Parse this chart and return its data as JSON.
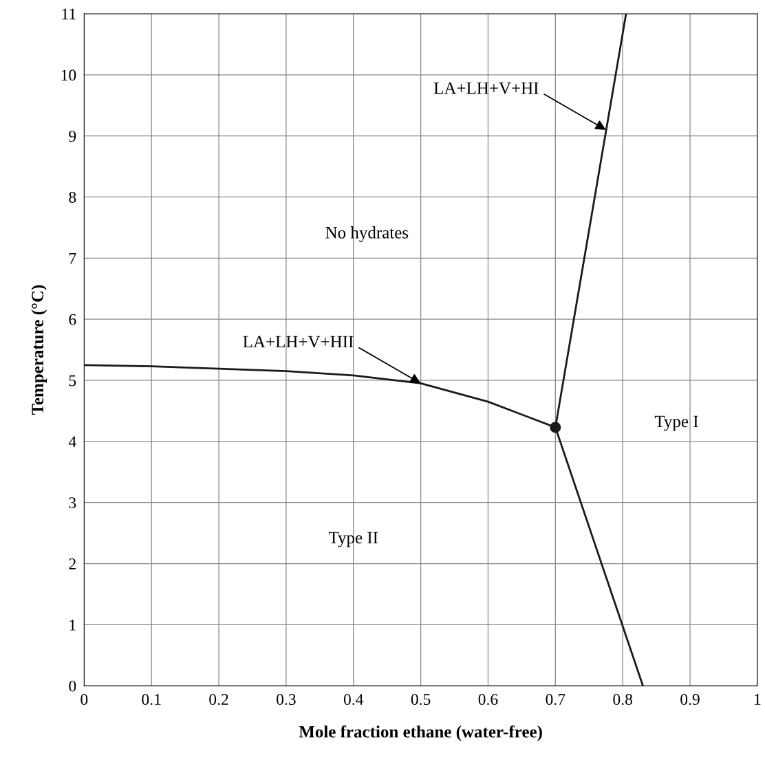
{
  "chart_data": {
    "type": "line",
    "xlabel": "Mole fraction ethane (water-free)",
    "ylabel": "Temperature (°C)",
    "xlim": [
      0,
      1
    ],
    "ylim": [
      0,
      11
    ],
    "xticks": [
      0,
      0.1,
      0.2,
      0.3,
      0.4,
      0.5,
      0.6,
      0.7,
      0.8,
      0.9,
      1
    ],
    "yticks": [
      0,
      1,
      2,
      3,
      4,
      5,
      6,
      7,
      8,
      9,
      10,
      11
    ],
    "grid": true,
    "line_style": "solid",
    "series": [
      {
        "color": "#1a1a1a",
        "x": [
          0,
          0.1,
          0.2,
          0.3,
          0.4,
          0.5,
          0.6,
          0.7
        ],
        "values": [
          5.25,
          5.23,
          5.19,
          5.15,
          5.08,
          4.95,
          4.65,
          4.23
        ]
      },
      {
        "color": "#1a1a1a",
        "x": [
          0.7,
          0.805
        ],
        "values": [
          4.23,
          11
        ]
      },
      {
        "color": "#1a1a1a",
        "x": [
          0.7,
          0.83
        ],
        "values": [
          4.23,
          0
        ]
      },
      {
        "type": "scatter",
        "marker": "circle",
        "color": "#1a1a1a",
        "x": [
          0.7
        ],
        "values": [
          4.23
        ]
      }
    ],
    "annotations": [
      {
        "text": "LA+LH+V+HI",
        "x": 0.775,
        "y": 9.1
      },
      {
        "text": "LA+LH+V+HII",
        "x": 0.5,
        "y": 4.95
      },
      "No hydrates",
      "Type I",
      "Type II"
    ]
  }
}
